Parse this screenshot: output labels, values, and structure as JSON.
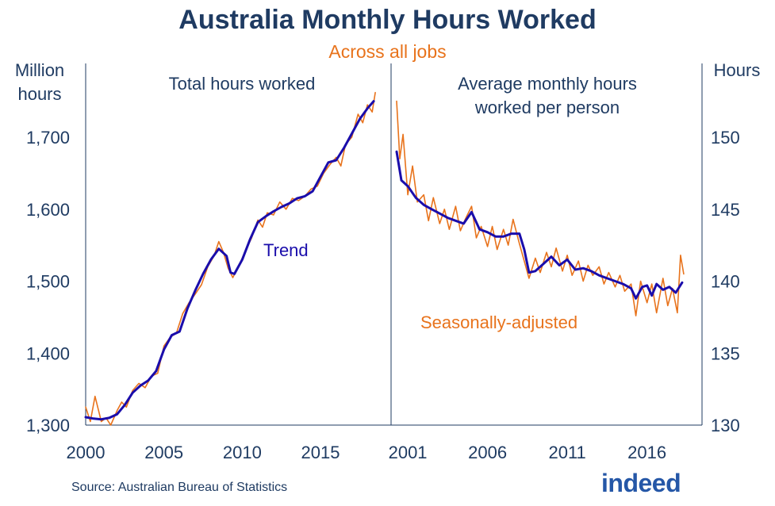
{
  "title": "Australia Monthly Hours Worked",
  "subtitle": "Across all jobs",
  "source": "Source: Australian Bureau of Statistics",
  "logo": "indeed",
  "colors": {
    "trend": "#1a0dab",
    "seasonal": "#e8731c",
    "text": "#1f3b62"
  },
  "chart_data": [
    {
      "type": "line",
      "panel_title": "Total hours worked",
      "ylabel": [
        "Million",
        "hours"
      ],
      "ylim": [
        1300,
        1760
      ],
      "yticks": [
        "1,300",
        "1,400",
        "1,500",
        "1,600",
        "1,700"
      ],
      "ytick_values": [
        1300,
        1400,
        1500,
        1600,
        1700
      ],
      "xlim": [
        2000,
        2018.9
      ],
      "xticks": [
        "2000",
        "2005",
        "2010",
        "2015"
      ],
      "xtick_values": [
        2000,
        2005,
        2010,
        2015
      ],
      "annotation": "Trend",
      "series": [
        {
          "name": "Trend",
          "color": "#1a0dab",
          "points": [
            [
              2000,
              1311
            ],
            [
              2000.5,
              1309
            ],
            [
              2001,
              1308
            ],
            [
              2001.5,
              1310
            ],
            [
              2002,
              1315
            ],
            [
              2002.5,
              1328
            ],
            [
              2003,
              1345
            ],
            [
              2003.5,
              1355
            ],
            [
              2004,
              1362
            ],
            [
              2004.5,
              1375
            ],
            [
              2005,
              1405
            ],
            [
              2005.5,
              1425
            ],
            [
              2006,
              1430
            ],
            [
              2006.5,
              1462
            ],
            [
              2007,
              1487
            ],
            [
              2007.5,
              1510
            ],
            [
              2008,
              1530
            ],
            [
              2008.5,
              1545
            ],
            [
              2009,
              1535
            ],
            [
              2009.25,
              1512
            ],
            [
              2009.5,
              1510
            ],
            [
              2010,
              1530
            ],
            [
              2010.5,
              1558
            ],
            [
              2011,
              1582
            ],
            [
              2011.5,
              1590
            ],
            [
              2012,
              1597
            ],
            [
              2012.5,
              1603
            ],
            [
              2013,
              1608
            ],
            [
              2013.5,
              1615
            ],
            [
              2014,
              1618
            ],
            [
              2014.5,
              1625
            ],
            [
              2015,
              1645
            ],
            [
              2015.5,
              1665
            ],
            [
              2016,
              1668
            ],
            [
              2016.5,
              1685
            ],
            [
              2017,
              1705
            ],
            [
              2017.5,
              1725
            ],
            [
              2018,
              1740
            ],
            [
              2018.4,
              1750
            ]
          ]
        },
        {
          "name": "Seasonally-adjusted",
          "color": "#e8731c",
          "points": [
            [
              2000,
              1325
            ],
            [
              2000.3,
              1305
            ],
            [
              2000.6,
              1340
            ],
            [
              2001,
              1305
            ],
            [
              2001.3,
              1310
            ],
            [
              2001.6,
              1300
            ],
            [
              2002,
              1320
            ],
            [
              2002.3,
              1332
            ],
            [
              2002.6,
              1325
            ],
            [
              2003,
              1348
            ],
            [
              2003.4,
              1358
            ],
            [
              2003.8,
              1352
            ],
            [
              2004.2,
              1368
            ],
            [
              2004.6,
              1372
            ],
            [
              2005,
              1410
            ],
            [
              2005.4,
              1422
            ],
            [
              2005.8,
              1428
            ],
            [
              2006.2,
              1455
            ],
            [
              2006.6,
              1470
            ],
            [
              2007,
              1482
            ],
            [
              2007.4,
              1495
            ],
            [
              2007.8,
              1520
            ],
            [
              2008.2,
              1535
            ],
            [
              2008.5,
              1555
            ],
            [
              2008.8,
              1540
            ],
            [
              2009.1,
              1518
            ],
            [
              2009.4,
              1505
            ],
            [
              2009.8,
              1522
            ],
            [
              2010.2,
              1542
            ],
            [
              2010.6,
              1560
            ],
            [
              2011,
              1585
            ],
            [
              2011.3,
              1575
            ],
            [
              2011.6,
              1595
            ],
            [
              2012,
              1592
            ],
            [
              2012.4,
              1610
            ],
            [
              2012.8,
              1600
            ],
            [
              2013.2,
              1615
            ],
            [
              2013.6,
              1612
            ],
            [
              2014,
              1618
            ],
            [
              2014.4,
              1628
            ],
            [
              2014.8,
              1632
            ],
            [
              2015.2,
              1650
            ],
            [
              2015.6,
              1662
            ],
            [
              2016,
              1672
            ],
            [
              2016.3,
              1660
            ],
            [
              2016.6,
              1690
            ],
            [
              2017,
              1700
            ],
            [
              2017.4,
              1732
            ],
            [
              2017.7,
              1720
            ],
            [
              2018,
              1745
            ],
            [
              2018.3,
              1735
            ],
            [
              2018.5,
              1762
            ]
          ]
        }
      ]
    },
    {
      "type": "line",
      "panel_title": "Average monthly hours worked per person",
      "ylabel": "Hours",
      "ylim": [
        130,
        155
      ],
      "yticks": [
        "130",
        "135",
        "140",
        "145",
        "150"
      ],
      "ytick_values": [
        130,
        135,
        140,
        145,
        150
      ],
      "xlim": [
        2000.2,
        2019.2
      ],
      "xticks": [
        "2001",
        "2006",
        "2011",
        "2016"
      ],
      "xtick_values": [
        2001,
        2006,
        2011,
        2016
      ],
      "annotation": "Seasonally-adjusted",
      "series": [
        {
          "name": "Trend",
          "color": "#1a0dab",
          "points": [
            [
              2000.3,
              149.0
            ],
            [
              2000.6,
              147.0
            ],
            [
              2001,
              146.6
            ],
            [
              2001.5,
              145.8
            ],
            [
              2002,
              145.3
            ],
            [
              2002.5,
              145.0
            ],
            [
              2003,
              144.7
            ],
            [
              2003.5,
              144.4
            ],
            [
              2004,
              144.2
            ],
            [
              2004.5,
              144.0
            ],
            [
              2005,
              144.8
            ],
            [
              2005.5,
              143.6
            ],
            [
              2006,
              143.4
            ],
            [
              2006.5,
              143.1
            ],
            [
              2007,
              143.1
            ],
            [
              2007.5,
              143.3
            ],
            [
              2008,
              143.3
            ],
            [
              2008.3,
              142.2
            ],
            [
              2008.6,
              140.6
            ],
            [
              2009,
              140.7
            ],
            [
              2009.5,
              141.2
            ],
            [
              2010,
              141.7
            ],
            [
              2010.5,
              141.1
            ],
            [
              2011,
              141.5
            ],
            [
              2011.5,
              140.8
            ],
            [
              2012,
              140.9
            ],
            [
              2012.5,
              140.7
            ],
            [
              2013,
              140.4
            ],
            [
              2013.5,
              140.2
            ],
            [
              2014,
              140.0
            ],
            [
              2014.5,
              139.8
            ],
            [
              2015,
              139.5
            ],
            [
              2015.3,
              138.8
            ],
            [
              2015.7,
              139.6
            ],
            [
              2016,
              139.7
            ],
            [
              2016.3,
              139.0
            ],
            [
              2016.6,
              139.8
            ],
            [
              2017,
              139.4
            ],
            [
              2017.4,
              139.6
            ],
            [
              2017.8,
              139.2
            ],
            [
              2018.2,
              139.9
            ]
          ]
        },
        {
          "name": "Seasonally-adjusted",
          "color": "#e8731c",
          "points": [
            [
              2000.3,
              152.5
            ],
            [
              2000.5,
              148.5
            ],
            [
              2000.7,
              150.2
            ],
            [
              2001,
              146.0
            ],
            [
              2001.3,
              148.0
            ],
            [
              2001.6,
              145.5
            ],
            [
              2002,
              146.0
            ],
            [
              2002.3,
              144.2
            ],
            [
              2002.6,
              145.8
            ],
            [
              2003,
              144.0
            ],
            [
              2003.3,
              145.0
            ],
            [
              2003.6,
              143.6
            ],
            [
              2004,
              145.2
            ],
            [
              2004.3,
              143.5
            ],
            [
              2004.6,
              144.3
            ],
            [
              2005,
              145.2
            ],
            [
              2005.3,
              143.0
            ],
            [
              2005.6,
              143.8
            ],
            [
              2006,
              142.4
            ],
            [
              2006.3,
              143.8
            ],
            [
              2006.6,
              142.2
            ],
            [
              2007,
              143.6
            ],
            [
              2007.3,
              142.5
            ],
            [
              2007.6,
              144.3
            ],
            [
              2008,
              142.6
            ],
            [
              2008.3,
              141.4
            ],
            [
              2008.6,
              140.2
            ],
            [
              2009,
              141.6
            ],
            [
              2009.3,
              140.6
            ],
            [
              2009.7,
              142.0
            ],
            [
              2010,
              141.0
            ],
            [
              2010.3,
              142.3
            ],
            [
              2010.7,
              140.7
            ],
            [
              2011,
              141.8
            ],
            [
              2011.3,
              140.4
            ],
            [
              2011.7,
              141.4
            ],
            [
              2012,
              140.0
            ],
            [
              2012.3,
              141.1
            ],
            [
              2012.6,
              140.4
            ],
            [
              2013,
              141.0
            ],
            [
              2013.3,
              139.8
            ],
            [
              2013.6,
              140.6
            ],
            [
              2014,
              139.6
            ],
            [
              2014.3,
              140.4
            ],
            [
              2014.6,
              139.3
            ],
            [
              2015,
              139.8
            ],
            [
              2015.3,
              137.6
            ],
            [
              2015.6,
              140.0
            ],
            [
              2016,
              138.5
            ],
            [
              2016.3,
              139.8
            ],
            [
              2016.6,
              137.8
            ],
            [
              2017,
              140.2
            ],
            [
              2017.3,
              138.3
            ],
            [
              2017.6,
              139.5
            ],
            [
              2017.9,
              137.8
            ],
            [
              2018.1,
              141.8
            ],
            [
              2018.3,
              140.5
            ]
          ]
        }
      ]
    }
  ]
}
